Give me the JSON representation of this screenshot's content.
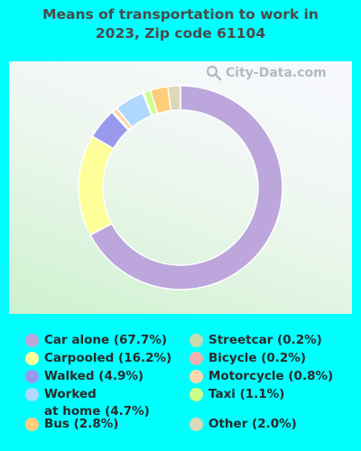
{
  "title_lines": [
    "Means of transportation to work in",
    "2023, Zip code 61104"
  ],
  "watermark": "City-Data.com",
  "chart_data": {
    "type": "pie",
    "title": "Means of transportation to work in 2023, Zip code 61104",
    "slices": [
      {
        "label": "Car alone",
        "value": 67.7,
        "color": "#bca6db",
        "legend": "Car alone (67.7%)"
      },
      {
        "label": "Carpooled",
        "value": 16.2,
        "color": "#ffff99",
        "legend": "Carpooled (16.2%)"
      },
      {
        "label": "Walked",
        "value": 4.9,
        "color": "#9999ee",
        "legend": "Walked (4.9%)"
      },
      {
        "label": "Bicycle",
        "value": 0.2,
        "color": "#f0b0b0",
        "legend": "Bicycle (0.2%)"
      },
      {
        "label": "Motorcycle",
        "value": 0.8,
        "color": "#ffd8b0",
        "legend": "Motorcycle (0.8%)"
      },
      {
        "label": "Worked at home",
        "value": 4.7,
        "color": "#b0d8ff",
        "legend": [
          "Worked",
          "at home (4.7%)"
        ]
      },
      {
        "label": "Streetcar",
        "value": 0.2,
        "color": "#c8dcb0",
        "legend": "Streetcar (0.2%)"
      },
      {
        "label": "Taxi",
        "value": 1.1,
        "color": "#ccff88",
        "legend": "Taxi (1.1%)"
      },
      {
        "label": "Bus",
        "value": 2.8,
        "color": "#ffcc77",
        "legend": "Bus (2.8%)"
      },
      {
        "label": "Other",
        "value": 2.0,
        "color": "#ddd8b8",
        "legend": "Other (2.0%)"
      }
    ],
    "legend_order": [
      "Car alone",
      "Carpooled",
      "Walked",
      "Worked at home",
      "Bus",
      "Streetcar",
      "Bicycle",
      "Motorcycle",
      "Taxi",
      "Other"
    ]
  }
}
